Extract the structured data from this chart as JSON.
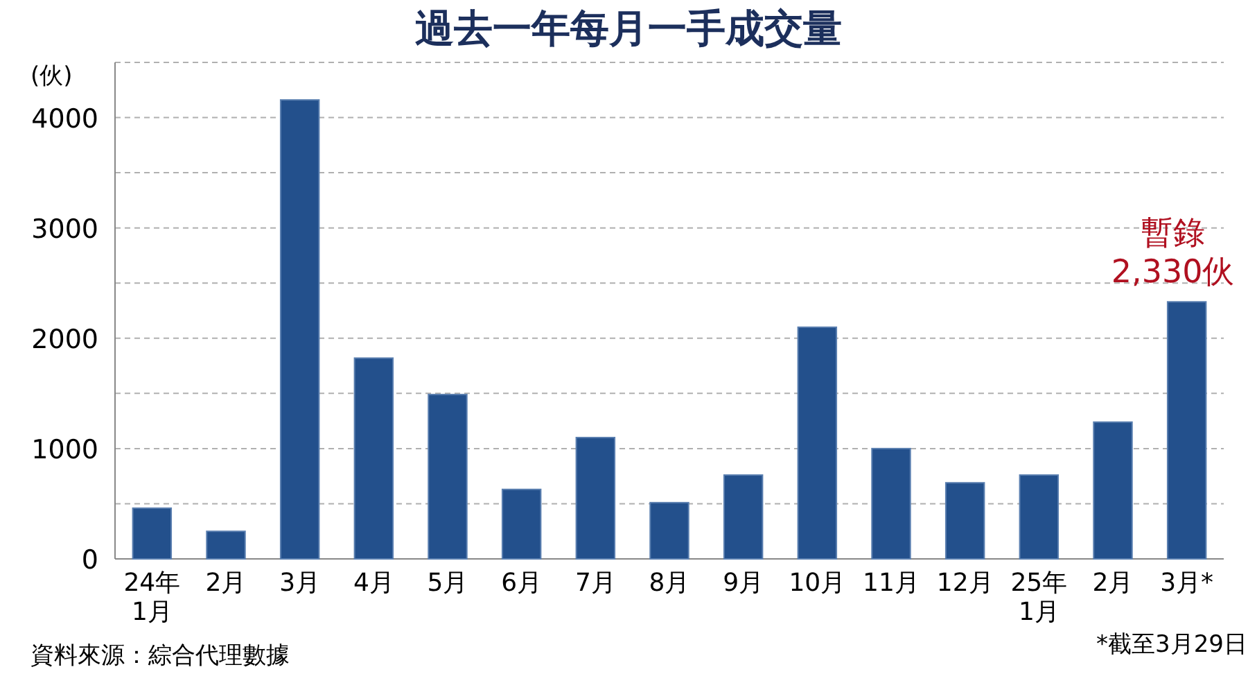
{
  "chart_data": {
    "type": "bar",
    "title": "過去一年每月一手成交量",
    "ylabel": "(伙)",
    "categories": [
      "24年\n1月",
      "2月",
      "3月",
      "4月",
      "5月",
      "6月",
      "7月",
      "8月",
      "9月",
      "10月",
      "11月",
      "12月",
      "25年\n1月",
      "2月",
      "3月*"
    ],
    "values": [
      460,
      250,
      4160,
      1820,
      1490,
      630,
      1100,
      510,
      760,
      2100,
      1000,
      690,
      760,
      1240,
      2330
    ],
    "color": "#23508c",
    "ylim": [
      0,
      4500
    ],
    "yticks": [
      0,
      {
        "value": 500,
        "label": null
      },
      1000,
      {
        "value": 1500,
        "label": null
      },
      2000,
      {
        "value": 2500,
        "label": null
      },
      3000,
      {
        "value": 3500,
        "label": null
      },
      4000,
      {
        "value": 4500,
        "label": null
      }
    ],
    "grid": "y",
    "annotations": [
      {
        "text": "暫錄\n2,330伙",
        "x": "3月*",
        "y": 2330
      },
      "資料來源：綜合代理數據",
      "*截至3月29日"
    ]
  }
}
